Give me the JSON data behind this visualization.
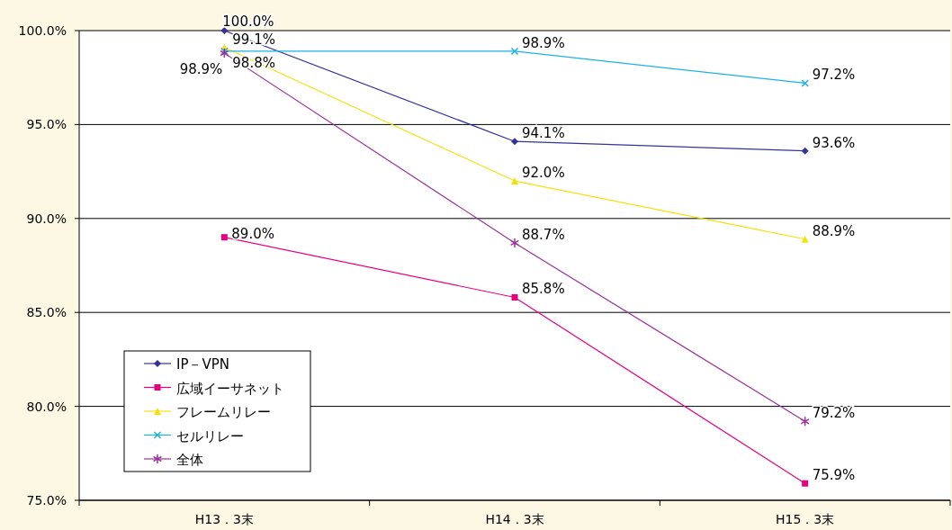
{
  "chart_data": {
    "type": "line",
    "categories": [
      "H13．3末",
      "H14．3末",
      "H15．3末"
    ],
    "series": [
      {
        "name": "IP－VPN",
        "color": "#333399",
        "marker": "diamond",
        "values": [
          100.0,
          94.1,
          93.6
        ],
        "value_labels": [
          "100.0%",
          "94.1%",
          "93.6%"
        ]
      },
      {
        "name": "広域イーサネット",
        "color": "#e6007e",
        "marker": "square",
        "values": [
          89.0,
          85.8,
          75.9
        ],
        "value_labels": [
          "89.0%",
          "85.8%",
          "75.9%"
        ]
      },
      {
        "name": "フレームリレー",
        "color": "#f5e10a",
        "marker": "triangle",
        "values": [
          99.1,
          92.0,
          88.9
        ],
        "value_labels": [
          "99.1%",
          "92.0%",
          "88.9%"
        ]
      },
      {
        "name": "セルリレー",
        "color": "#1ab2e8",
        "marker": "cross",
        "values": [
          98.9,
          98.9,
          97.2
        ],
        "value_labels": [
          "98.9%",
          "98.9%",
          "97.2%"
        ]
      },
      {
        "name": "全体",
        "color": "#993399",
        "marker": "star",
        "values": [
          98.8,
          88.7,
          79.2
        ],
        "value_labels": [
          "98.8%",
          "88.7%",
          "79.2%"
        ]
      }
    ],
    "ylim": [
      75,
      100
    ],
    "yticks": [
      {
        "value": 75,
        "label": "75.0%"
      },
      {
        "value": 80,
        "label": "80.0%"
      },
      {
        "value": 85,
        "label": "85.0%"
      },
      {
        "value": 90,
        "label": "90.0%"
      },
      {
        "value": 95,
        "label": "95.0%"
      },
      {
        "value": 100,
        "label": "100.0%"
      }
    ],
    "grid": "y",
    "legend": "bottom left"
  }
}
